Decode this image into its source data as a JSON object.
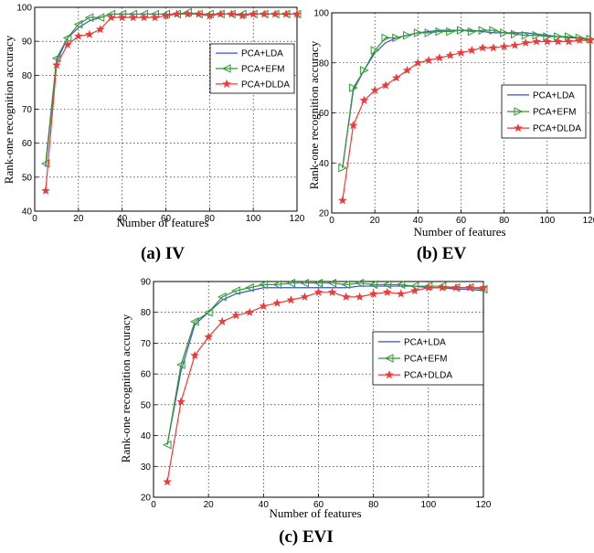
{
  "colors": {
    "lda": "#3a4fd6",
    "efm": "#2f9a34",
    "dlda": "#ee3a3a"
  },
  "chart_data": [
    {
      "id": "a",
      "type": "line",
      "caption": "(a) IV",
      "xlabel": "Number of features",
      "ylabel": "Rank-one recognition accuracy",
      "xlim": [
        0,
        120
      ],
      "ylim": [
        40,
        100
      ],
      "xticks": [
        0,
        20,
        40,
        60,
        80,
        100,
        120
      ],
      "yticks": [
        40,
        50,
        60,
        70,
        80,
        90,
        100
      ],
      "grid": true,
      "legend_position": "right",
      "x": [
        5,
        10,
        15,
        20,
        25,
        30,
        35,
        40,
        45,
        50,
        55,
        60,
        65,
        70,
        75,
        80,
        85,
        90,
        95,
        100,
        105,
        110,
        115,
        120
      ],
      "series": [
        {
          "name": "PCA+LDA",
          "color_key": "lda",
          "marker": "none",
          "values": [
            53,
            84,
            91,
            94,
            96,
            97,
            98,
            98,
            98,
            98,
            98,
            98,
            98,
            98,
            98,
            98,
            98,
            98,
            98,
            98,
            98,
            98,
            98,
            98
          ]
        },
        {
          "name": "PCA+EFM",
          "color_key": "efm",
          "marker": "triangle-left",
          "values": [
            54,
            85,
            91,
            95,
            97,
            97,
            98,
            98,
            98,
            98,
            98,
            98,
            98,
            98.5,
            98,
            98,
            98,
            98,
            98,
            98,
            98,
            98,
            98,
            98
          ]
        },
        {
          "name": "PCA+DLDA",
          "color_key": "dlda",
          "marker": "star",
          "values": [
            46,
            83,
            89,
            91.5,
            92,
            93.5,
            97,
            97,
            97,
            97,
            97,
            97.5,
            98,
            98,
            98,
            97.5,
            98,
            98,
            97.5,
            98,
            98,
            98,
            98,
            98
          ]
        }
      ]
    },
    {
      "id": "b",
      "type": "line",
      "caption": "(b) EV",
      "xlabel": "Number of features",
      "ylabel": "Rank-one recognition accuracy",
      "xlim": [
        0,
        120
      ],
      "ylim": [
        20,
        100
      ],
      "xticks": [
        0,
        20,
        40,
        60,
        80,
        100,
        120
      ],
      "yticks": [
        20,
        40,
        60,
        80,
        100
      ],
      "grid": true,
      "legend_position": "right",
      "x": [
        5,
        10,
        15,
        20,
        25,
        30,
        35,
        40,
        45,
        50,
        55,
        60,
        65,
        70,
        75,
        80,
        85,
        90,
        95,
        100,
        105,
        110,
        115,
        120
      ],
      "series": [
        {
          "name": "PCA+LDA",
          "color_key": "lda",
          "marker": "none",
          "values": [
            38,
            69,
            77,
            84,
            88,
            90,
            91,
            92,
            92.5,
            93,
            93,
            93,
            93,
            92.5,
            92,
            92,
            92,
            92,
            91.5,
            91,
            90.5,
            90,
            90,
            89
          ]
        },
        {
          "name": "PCA+EFM",
          "color_key": "efm",
          "marker": "triangle-right",
          "values": [
            38,
            70,
            77,
            85,
            90,
            90,
            91,
            92,
            92,
            92.5,
            92.5,
            93,
            92.5,
            93,
            93,
            92,
            91.5,
            91,
            91,
            90.5,
            90.5,
            90.5,
            90,
            89.5
          ]
        },
        {
          "name": "PCA+DLDA",
          "color_key": "dlda",
          "marker": "star",
          "values": [
            25,
            55,
            65,
            69,
            71,
            74,
            77,
            80,
            81,
            82,
            83,
            84,
            85,
            86,
            86,
            86.5,
            87,
            88,
            88.5,
            88.5,
            88.5,
            88.5,
            89,
            89
          ]
        }
      ]
    },
    {
      "id": "c",
      "type": "line",
      "caption": "(c) EVI",
      "xlabel": "Number of features",
      "ylabel": "Rank-one recognition accuracy",
      "xlim": [
        0,
        120
      ],
      "ylim": [
        20,
        90
      ],
      "xticks": [
        0,
        20,
        40,
        60,
        80,
        100,
        120
      ],
      "yticks": [
        20,
        30,
        40,
        50,
        60,
        70,
        80,
        90
      ],
      "grid": true,
      "legend_position": "right",
      "x": [
        5,
        10,
        15,
        20,
        25,
        30,
        35,
        40,
        45,
        50,
        55,
        60,
        65,
        70,
        75,
        80,
        85,
        90,
        95,
        100,
        105,
        110,
        115,
        120
      ],
      "series": [
        {
          "name": "PCA+LDA",
          "color_key": "lda",
          "marker": "none",
          "values": [
            37,
            61,
            76,
            80,
            84,
            86,
            87,
            88,
            88,
            88,
            88,
            88,
            88,
            88,
            88.5,
            88.5,
            88.5,
            88.5,
            88.5,
            88,
            88,
            87.5,
            87.5,
            87
          ]
        },
        {
          "name": "PCA+EFM",
          "color_key": "efm",
          "marker": "triangle-left",
          "values": [
            37,
            63,
            77,
            80,
            85,
            87,
            88,
            89,
            89,
            89.5,
            89.5,
            89.5,
            89.5,
            89,
            89.5,
            89,
            89,
            89,
            88.5,
            88.5,
            88.5,
            88,
            88,
            87.5
          ]
        },
        {
          "name": "PCA+DLDA",
          "color_key": "dlda",
          "marker": "star",
          "values": [
            25,
            51,
            66,
            72,
            77,
            79,
            80,
            82,
            83,
            84,
            85,
            86.5,
            86.5,
            85,
            85,
            86,
            86.5,
            86,
            87,
            88,
            88,
            88,
            88,
            88
          ]
        }
      ]
    }
  ]
}
